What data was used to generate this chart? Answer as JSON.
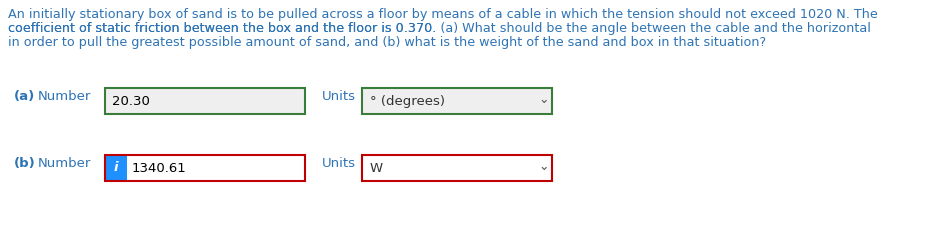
{
  "bg_color": "#ffffff",
  "text_color": "#2e74b5",
  "para_line1": "An initially stationary box of sand is to be pulled across a floor by means of a cable in which the tension should not exceed 1020 N. The",
  "para_line2": "coefficient of static friction between the box and the floor is 0.370. (a) What should be the angle between the cable and the horizontal",
  "para_line3": "in order to pull the greatest possible amount of sand, and (b) what is the weight of the sand and box in that situation?",
  "para_line2_bold": "(a)",
  "para_line3_bold": "(b)",
  "row_a_value": "20.30",
  "row_a_units_value": "° (degrees)",
  "row_b_value": "1340.61",
  "row_b_units_value": "W",
  "box_border_a": "#3a7d3a",
  "box_border_b": "#c00000",
  "info_bg": "#1e90ff",
  "info_text": "i",
  "font_size_para": 9.2,
  "font_size_fields": 9.5,
  "box_fill_a": "#efefef",
  "box_fill_b": "#ffffff",
  "dropdown_arrow": "∨"
}
